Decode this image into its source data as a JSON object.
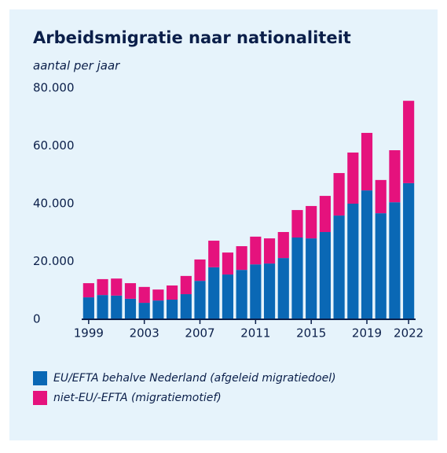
{
  "chart_data": {
    "type": "stacked_bar",
    "title": "Arbeidsmigratie naar nationaliteit",
    "subtitle": "aantal per jaar",
    "categories": [
      "1999",
      null,
      null,
      null,
      "2003",
      null,
      null,
      null,
      "2007",
      null,
      null,
      null,
      "2011",
      null,
      null,
      null,
      "2015",
      null,
      null,
      null,
      "2019",
      null,
      null,
      "2022"
    ],
    "series": [
      {
        "name": "EU/EFTA behalve Nederland (afgeleid migratiedoel)",
        "color": "#0a68b5",
        "values": [
          7.6,
          8.4,
          8.2,
          7.1,
          5.7,
          6.5,
          6.8,
          8.7,
          13.3,
          18.0,
          15.5,
          17.1,
          19.0,
          19.3,
          21.2,
          28.3,
          28.0,
          30.2,
          35.9,
          40.0,
          44.6,
          36.7,
          40.5,
          47.1
        ]
      },
      {
        "name": "niet-EU/-EFTA (migratiemotief)",
        "color": "#e5127d",
        "values": [
          4.9,
          5.5,
          5.9,
          5.4,
          5.5,
          3.8,
          4.9,
          6.3,
          7.4,
          9.2,
          7.6,
          8.2,
          9.6,
          8.7,
          9.0,
          9.5,
          11.2,
          12.5,
          14.7,
          17.7,
          19.9,
          11.5,
          18.0,
          28.5
        ]
      }
    ],
    "ylim": [
      0,
      80
    ],
    "yticks": [
      0,
      {
        "value": 20,
        "label": "20.000"
      },
      {
        "value": 40,
        "label": "40.000"
      },
      {
        "value": 60,
        "label": "60.000"
      },
      {
        "value": 80,
        "label": "80.000"
      }
    ]
  }
}
